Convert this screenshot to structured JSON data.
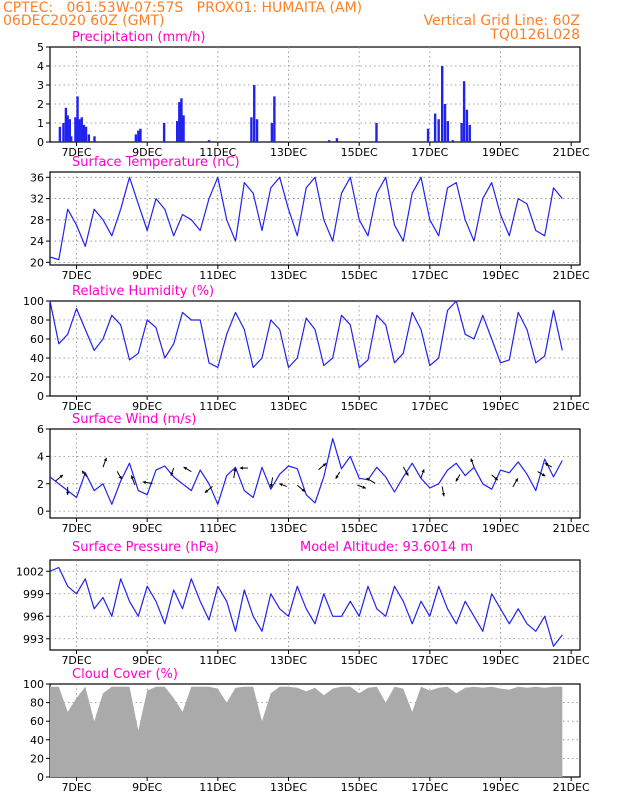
{
  "header": {
    "line1_left": "CPTEC:   061:53W-07:57S   PROX01: HUMAITA (AM)",
    "line2_left": "06DEC2020 60Z (GMT)",
    "line2_right": "Vertical Grid Line: 60Z",
    "line3_right": "TQ0126L028"
  },
  "colors": {
    "header": "#ff7f24",
    "panel_title": "#ff00cc",
    "series": "#2222ee",
    "cloud_fill": "#aaaaaa",
    "arrows": "#000000",
    "grid": "#888888"
  },
  "x_ticks": [
    "7DEC",
    "9DEC",
    "11DEC",
    "13DEC",
    "15DEC",
    "17DEC",
    "19DEC",
    "21DEC"
  ],
  "chart_data": [
    {
      "type": "bar",
      "title": "Precipitation (mm/h)",
      "ylim": [
        0,
        5
      ],
      "yticks": [
        "0",
        "1",
        "2",
        "3",
        "4",
        "5"
      ],
      "grid": true,
      "x_unit": "days since 6DEC 06Z",
      "values": [
        [
          0.28,
          0.8
        ],
        [
          0.38,
          1.0
        ],
        [
          0.45,
          1.8
        ],
        [
          0.5,
          1.4
        ],
        [
          0.56,
          1.2
        ],
        [
          0.6,
          0.3
        ],
        [
          0.72,
          1.3
        ],
        [
          0.78,
          2.4
        ],
        [
          0.84,
          1.2
        ],
        [
          0.9,
          1.3
        ],
        [
          0.96,
          0.9
        ],
        [
          1.02,
          0.8
        ],
        [
          1.1,
          0.4
        ],
        [
          1.26,
          0.3
        ],
        [
          2.43,
          0.4
        ],
        [
          2.5,
          0.6
        ],
        [
          2.56,
          0.7
        ],
        [
          3.23,
          1.0
        ],
        [
          3.6,
          1.1
        ],
        [
          3.66,
          2.1
        ],
        [
          3.72,
          2.3
        ],
        [
          3.78,
          1.4
        ],
        [
          4.5,
          0.1
        ],
        [
          5.7,
          1.3
        ],
        [
          5.78,
          3.0
        ],
        [
          5.86,
          1.2
        ],
        [
          6.28,
          1.0
        ],
        [
          6.35,
          2.4
        ],
        [
          7.9,
          0.1
        ],
        [
          8.12,
          0.2
        ],
        [
          9.24,
          1.0
        ],
        [
          10.7,
          0.7
        ],
        [
          10.9,
          1.5
        ],
        [
          11.0,
          1.2
        ],
        [
          11.1,
          4.0
        ],
        [
          11.18,
          2.0
        ],
        [
          11.26,
          1.1
        ],
        [
          11.4,
          0.1
        ],
        [
          11.65,
          1.0
        ],
        [
          11.72,
          3.2
        ],
        [
          11.8,
          1.7
        ],
        [
          11.88,
          0.9
        ]
      ]
    },
    {
      "type": "line",
      "title": "Surface Temperature (nC)",
      "ylim": [
        19.5,
        37
      ],
      "yticks": [
        "20",
        "24",
        "28",
        "32",
        "36"
      ],
      "grid": true,
      "x": [
        0,
        0.25,
        0.5,
        0.75,
        1,
        1.25,
        1.5,
        1.75,
        2,
        2.25,
        2.5,
        2.75,
        3,
        3.25,
        3.5,
        3.75,
        4,
        4.25,
        4.5,
        4.75,
        5,
        5.25,
        5.5,
        5.75,
        6,
        6.25,
        6.5,
        6.75,
        7,
        7.25,
        7.5,
        7.75,
        8,
        8.25,
        8.5,
        8.75,
        9,
        9.25,
        9.5,
        9.75,
        10,
        10.25,
        10.5,
        10.75,
        11,
        11.25,
        11.5,
        11.75,
        12,
        12.25,
        12.5,
        12.75,
        13,
        13.25,
        13.5,
        13.75,
        14,
        14.25,
        14.5
      ],
      "y": [
        21,
        20.5,
        30,
        27,
        23,
        30,
        28,
        25,
        30,
        36,
        31,
        26,
        32,
        30,
        25,
        29,
        28,
        26,
        32,
        36,
        28,
        24,
        35,
        33,
        26,
        34,
        36,
        30,
        25,
        34,
        36,
        28,
        24,
        33,
        36,
        28,
        25,
        33,
        36,
        27,
        24,
        33,
        36,
        28,
        25,
        34,
        35,
        28,
        24,
        32,
        35,
        29,
        25,
        32,
        31,
        26,
        25,
        34,
        32
      ]
    },
    {
      "type": "line",
      "title": "Relative Humidity (%)",
      "ylim": [
        0,
        100
      ],
      "yticks": [
        "0",
        "20",
        "40",
        "60",
        "80",
        "100"
      ],
      "grid": true,
      "x": [
        0,
        0.25,
        0.5,
        0.75,
        1,
        1.25,
        1.5,
        1.75,
        2,
        2.25,
        2.5,
        2.75,
        3,
        3.25,
        3.5,
        3.75,
        4,
        4.25,
        4.5,
        4.75,
        5,
        5.25,
        5.5,
        5.75,
        6,
        6.25,
        6.5,
        6.75,
        7,
        7.25,
        7.5,
        7.75,
        8,
        8.25,
        8.5,
        8.75,
        9,
        9.25,
        9.5,
        9.75,
        10,
        10.25,
        10.5,
        10.75,
        11,
        11.25,
        11.5,
        11.75,
        12,
        12.25,
        12.5,
        12.75,
        13,
        13.25,
        13.5,
        13.75,
        14,
        14.25,
        14.5
      ],
      "y": [
        100,
        55,
        65,
        92,
        70,
        48,
        60,
        85,
        75,
        38,
        45,
        80,
        72,
        40,
        55,
        88,
        80,
        80,
        35,
        30,
        65,
        88,
        70,
        30,
        40,
        80,
        70,
        30,
        40,
        82,
        70,
        32,
        40,
        85,
        75,
        30,
        38,
        85,
        75,
        35,
        45,
        88,
        70,
        32,
        40,
        90,
        100,
        65,
        60,
        85,
        60,
        35,
        38,
        88,
        70,
        35,
        42,
        90,
        48
      ]
    },
    {
      "type": "line",
      "title": "Surface Wind (m/s)",
      "ylim": [
        -0.5,
        6
      ],
      "yticks": [
        "0",
        "2",
        "4",
        "6"
      ],
      "grid": true,
      "x": [
        0,
        0.25,
        0.5,
        0.75,
        1,
        1.25,
        1.5,
        1.75,
        2,
        2.25,
        2.5,
        2.75,
        3,
        3.25,
        3.5,
        3.75,
        4,
        4.25,
        4.5,
        4.75,
        5,
        5.25,
        5.5,
        5.75,
        6,
        6.25,
        6.5,
        6.75,
        7,
        7.25,
        7.5,
        7.75,
        8,
        8.25,
        8.5,
        8.75,
        9,
        9.25,
        9.5,
        9.75,
        10,
        10.25,
        10.5,
        10.75,
        11,
        11.25,
        11.5,
        11.75,
        12,
        12.25,
        12.5,
        12.75,
        13,
        13.25,
        13.5,
        13.75,
        14,
        14.25,
        14.5
      ],
      "y": [
        2.5,
        2,
        1.5,
        1,
        2.8,
        1.5,
        2,
        0.5,
        2.2,
        3.5,
        1.5,
        1.2,
        3,
        3.3,
        2.5,
        2,
        1.5,
        3,
        2,
        0.5,
        2.6,
        3.2,
        1.5,
        1,
        3.2,
        1.6,
        2.7,
        3.3,
        3.1,
        1.2,
        0.6,
        2.5,
        5.3,
        3.1,
        4,
        2.4,
        2.3,
        3.2,
        2.5,
        1.4,
        2.5,
        3.5,
        2.4,
        1.7,
        2,
        3,
        3.5,
        2.6,
        3.2,
        2,
        1.6,
        3,
        2.8,
        3.6,
        2.7,
        1.5,
        3.8,
        2.5,
        3.7
      ],
      "arrows": [
        [
          0.15,
          40,
          1.0
        ],
        [
          0.5,
          -90,
          0.8
        ],
        [
          1.05,
          130,
          0.8
        ],
        [
          1.5,
          70,
          1.0
        ],
        [
          1.9,
          -60,
          0.9
        ],
        [
          2.4,
          110,
          1.0
        ],
        [
          2.9,
          170,
          1.0
        ],
        [
          3.5,
          -110,
          0.8
        ],
        [
          4.0,
          150,
          0.9
        ],
        [
          4.6,
          -140,
          1.0
        ],
        [
          5.2,
          80,
          1.0
        ],
        [
          5.6,
          180,
          0.8
        ],
        [
          6.3,
          -100,
          1.0
        ],
        [
          6.7,
          160,
          0.8
        ],
        [
          7.0,
          -40,
          1.0
        ],
        [
          7.6,
          40,
          1.0
        ],
        [
          8.2,
          -120,
          0.8
        ],
        [
          8.7,
          -20,
          0.9
        ],
        [
          9.2,
          150,
          1.0
        ],
        [
          10.0,
          -60,
          1.0
        ],
        [
          10.5,
          70,
          0.9
        ],
        [
          11.1,
          -80,
          1.0
        ],
        [
          11.6,
          -120,
          0.8
        ],
        [
          12.0,
          110,
          0.9
        ],
        [
          12.5,
          -40,
          0.8
        ],
        [
          13.1,
          60,
          1.0
        ],
        [
          13.8,
          -30,
          0.9
        ],
        [
          14.2,
          150,
          0.8
        ]
      ]
    },
    {
      "type": "line",
      "title": "Surface Pressure (hPa)",
      "annotation": "Model Altitude: 93.6014 m",
      "ylim": [
        991.5,
        1003.5
      ],
      "yticks": [
        "993",
        "996",
        "999",
        "1002"
      ],
      "grid": true,
      "x": [
        0,
        0.25,
        0.5,
        0.75,
        1,
        1.25,
        1.5,
        1.75,
        2,
        2.25,
        2.5,
        2.75,
        3,
        3.25,
        3.5,
        3.75,
        4,
        4.25,
        4.5,
        4.75,
        5,
        5.25,
        5.5,
        5.75,
        6,
        6.25,
        6.5,
        6.75,
        7,
        7.25,
        7.5,
        7.75,
        8,
        8.25,
        8.5,
        8.75,
        9,
        9.25,
        9.5,
        9.75,
        10,
        10.25,
        10.5,
        10.75,
        11,
        11.25,
        11.5,
        11.75,
        12,
        12.25,
        12.5,
        12.75,
        13,
        13.25,
        13.5,
        13.75,
        14,
        14.25,
        14.5
      ],
      "y": [
        1002,
        1002.5,
        1000,
        999,
        1001,
        997,
        998.5,
        996,
        1001,
        998,
        996,
        1000,
        998,
        995,
        999.5,
        997,
        1001,
        998,
        995.5,
        1000,
        998,
        994,
        999.5,
        996,
        994,
        999,
        997,
        996,
        1000,
        997,
        995,
        999,
        996,
        996,
        998,
        996,
        1000,
        997,
        996,
        1000,
        998,
        995,
        998,
        996,
        1000,
        997,
        995,
        998,
        996,
        994,
        999,
        997,
        995,
        997,
        995,
        994,
        996,
        992,
        993.5
      ]
    },
    {
      "type": "area",
      "title": "Cloud Cover (%)",
      "ylim": [
        0,
        100
      ],
      "yticks": [
        "0",
        "20",
        "40",
        "60",
        "80",
        "100"
      ],
      "grid": true,
      "x": [
        0,
        0.25,
        0.5,
        0.75,
        1,
        1.25,
        1.5,
        1.75,
        2,
        2.25,
        2.5,
        2.75,
        3,
        3.25,
        3.5,
        3.75,
        4,
        4.25,
        4.5,
        4.75,
        5,
        5.25,
        5.5,
        5.75,
        6,
        6.25,
        6.5,
        6.75,
        7,
        7.25,
        7.5,
        7.75,
        8,
        8.25,
        8.5,
        8.75,
        9,
        9.25,
        9.5,
        9.75,
        10,
        10.25,
        10.5,
        10.75,
        11,
        11.25,
        11.5,
        11.75,
        12,
        12.25,
        12.5,
        12.75,
        13,
        13.25,
        13.5,
        13.75,
        14,
        14.25,
        14.5
      ],
      "y": [
        97,
        97,
        70,
        85,
        97,
        60,
        90,
        97,
        97,
        97,
        50,
        93,
        97,
        97,
        85,
        70,
        97,
        97,
        97,
        95,
        80,
        96,
        97,
        97,
        60,
        90,
        97,
        97,
        96,
        92,
        96,
        88,
        95,
        97,
        97,
        90,
        96,
        97,
        80,
        97,
        95,
        70,
        97,
        93,
        96,
        97,
        90,
        96,
        97,
        96,
        97,
        95,
        94,
        97,
        96,
        97,
        96,
        97,
        97
      ]
    }
  ]
}
